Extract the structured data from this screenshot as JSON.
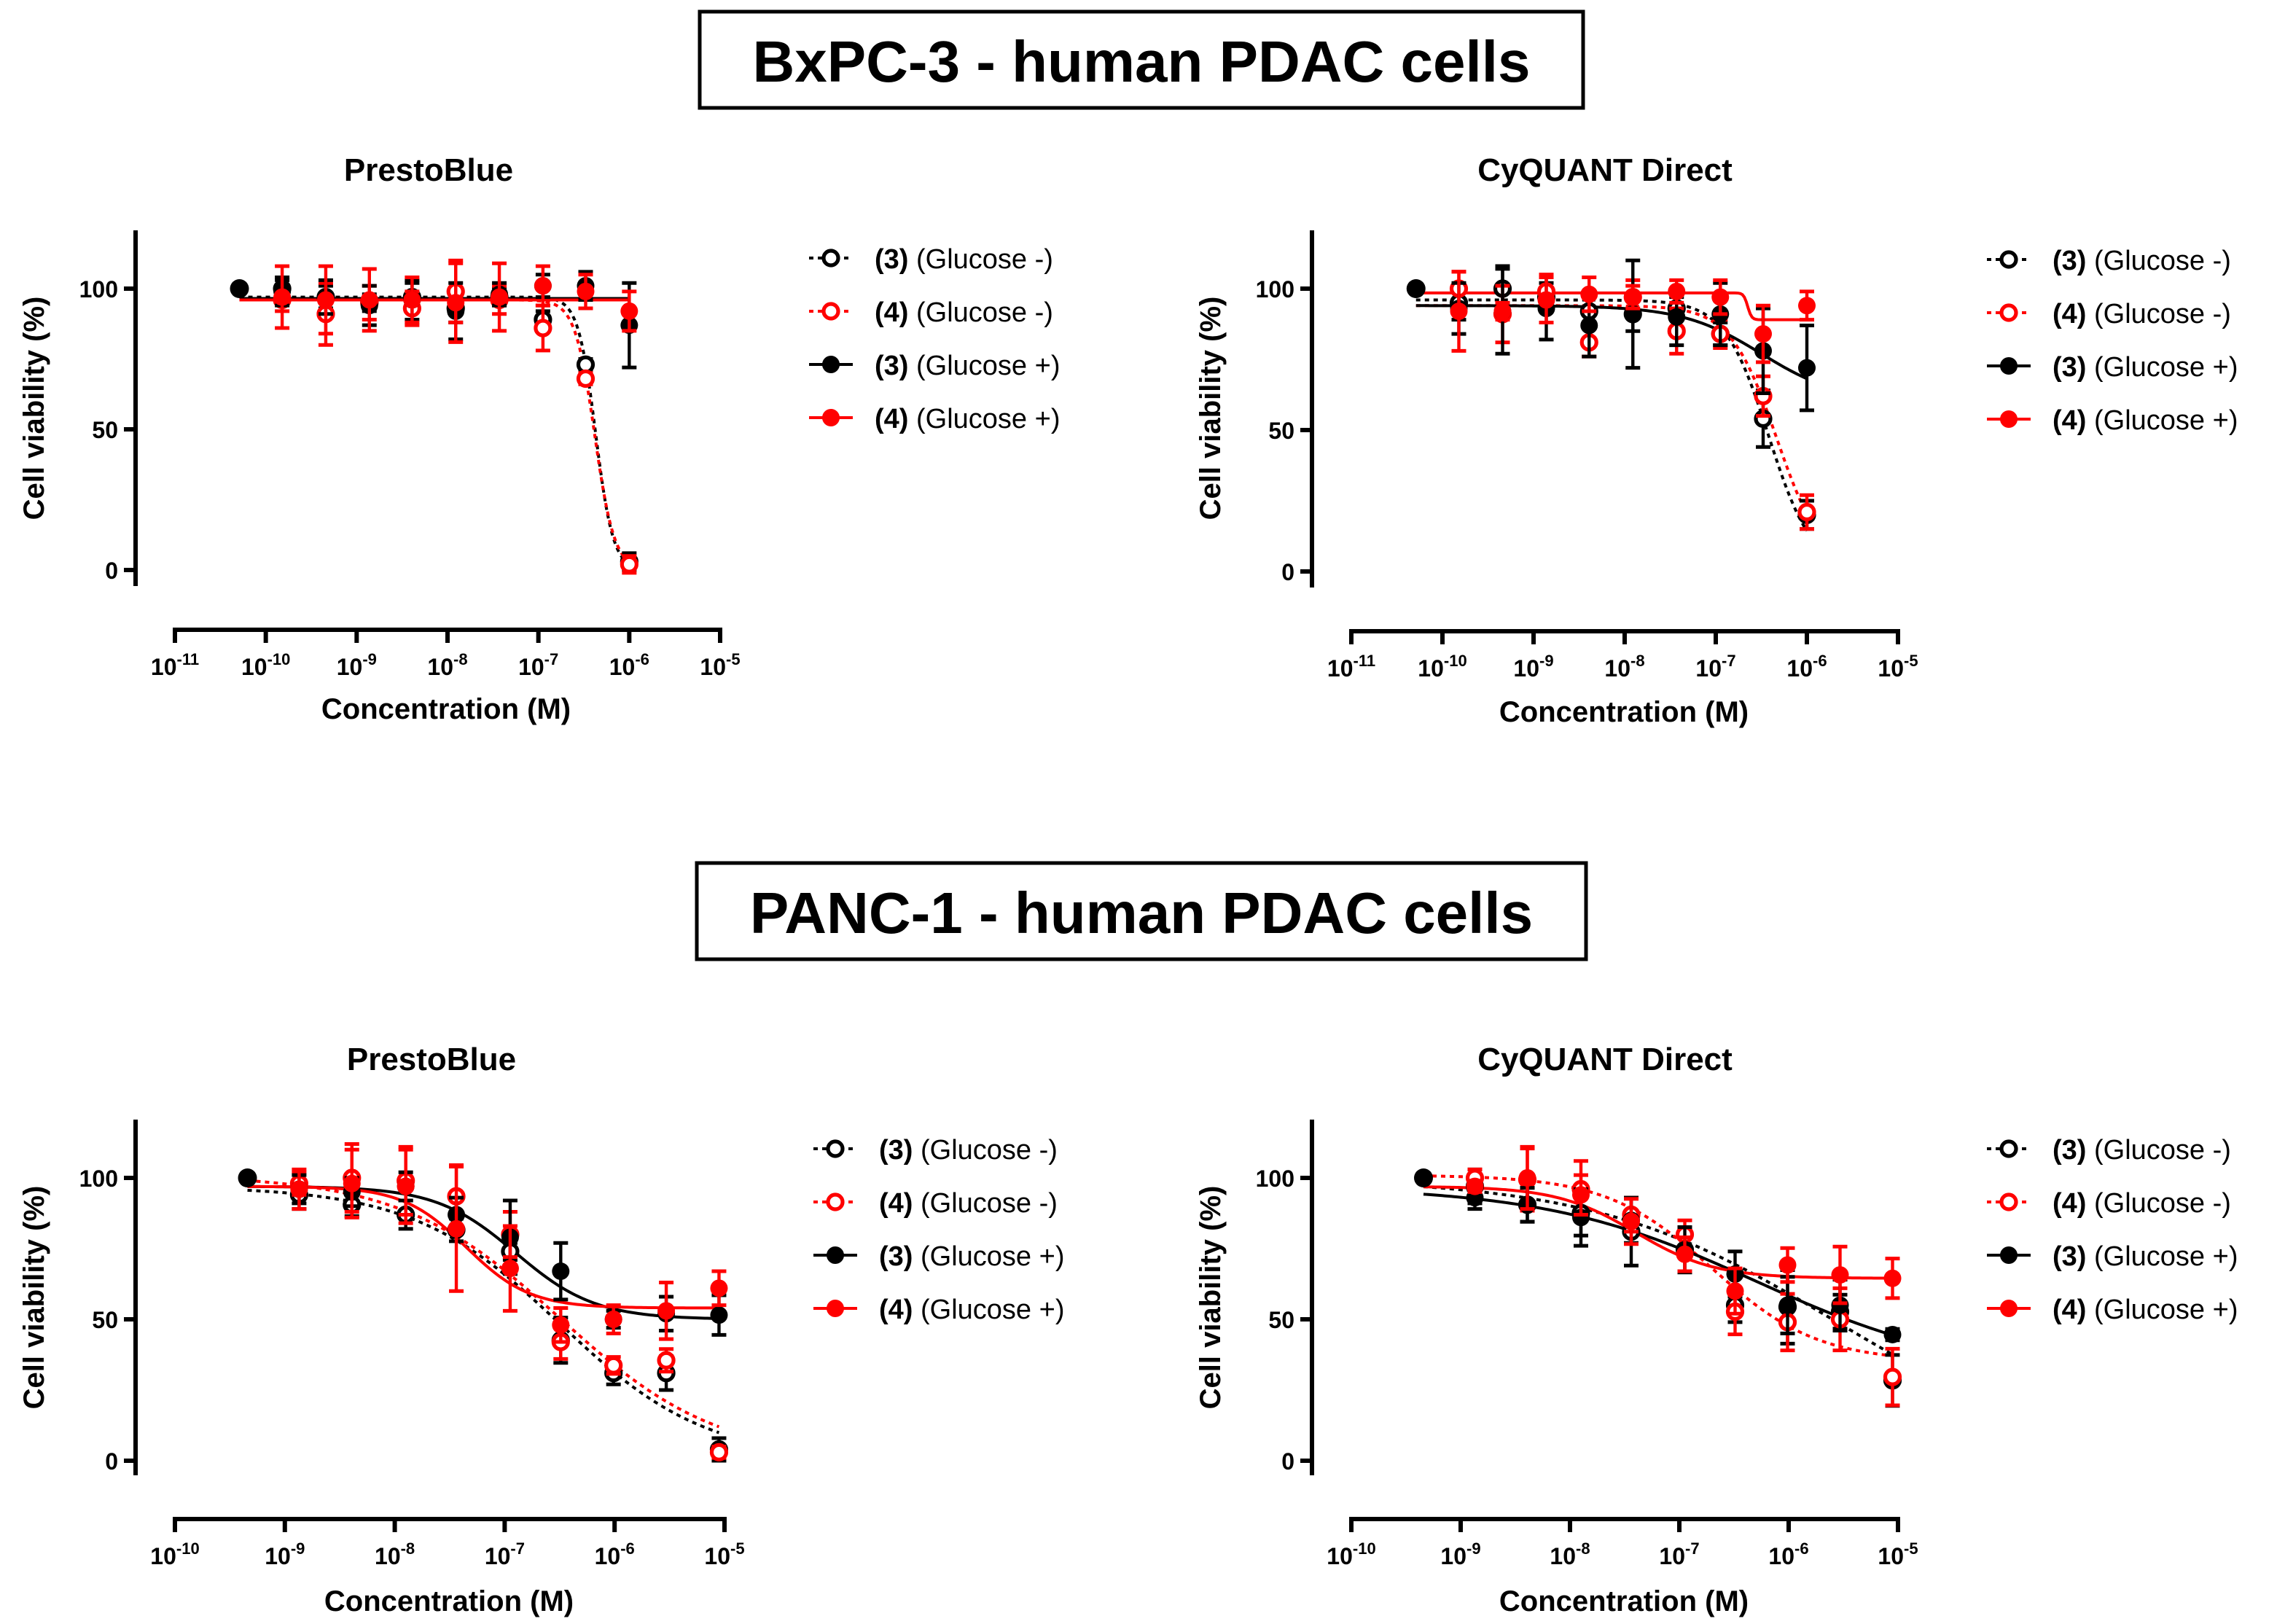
{
  "sections": [
    {
      "title": "BxPC-3 - human PDAC cells"
    },
    {
      "title": "PANC-1 - human PDAC cells"
    }
  ],
  "colors": {
    "black": "#000000",
    "red": "#ff0000"
  },
  "series_styles": [
    {
      "color": "#000000",
      "filled": false,
      "dashed": true
    },
    {
      "color": "#ff0000",
      "filled": false,
      "dashed": true
    },
    {
      "color": "#000000",
      "filled": true,
      "dashed": false
    },
    {
      "color": "#ff0000",
      "filled": true,
      "dashed": false
    }
  ],
  "chart_data": [
    {
      "type": "scatter",
      "title": "PrestoBlue",
      "xlabel": "Concentration (M)",
      "ylabel": "Cell viability (%)",
      "xscale": "log10",
      "xlim_log10": [
        -11,
        -5
      ],
      "x_ticks": [
        {
          "base": "10",
          "exp": "-11"
        },
        {
          "base": "10",
          "exp": "-10"
        },
        {
          "base": "10",
          "exp": "-9"
        },
        {
          "base": "10",
          "exp": "-8"
        },
        {
          "base": "10",
          "exp": "-7"
        },
        {
          "base": "10",
          "exp": "-6"
        },
        {
          "base": "10",
          "exp": "-5"
        }
      ],
      "y_ticks": [
        "100",
        "50",
        "0"
      ],
      "y_tick_values": [
        100,
        50,
        0
      ],
      "ylim": [
        -6,
        120
      ],
      "control": {
        "log10_x": -10.29,
        "y": 100
      },
      "log10_x": [
        -9.82,
        -9.34,
        -8.86,
        -8.39,
        -7.91,
        -7.43,
        -6.95,
        -6.48,
        -6.0
      ],
      "legend_position": "right",
      "series": [
        {
          "id": "(3)",
          "cond": "(Glucose -)",
          "values": [
            100,
            97,
            95,
            97,
            93,
            97,
            89,
            73,
            3
          ],
          "errors": [
            3,
            4,
            3,
            5,
            5,
            3,
            3,
            2,
            3
          ],
          "fit": {
            "top": 97,
            "bottom": 0,
            "log_ic50": -6.37,
            "hill": 4.5
          }
        },
        {
          "id": "(4)",
          "cond": "(Glucose -)",
          "values": [
            96,
            91,
            95,
            93,
            99,
            96,
            86,
            68,
            2
          ],
          "errors": [
            4,
            11,
            6,
            6,
            11,
            5,
            8,
            2,
            3
          ],
          "fit": {
            "top": 96,
            "bottom": 0,
            "log_ic50": -6.38,
            "hill": 4
          }
        },
        {
          "id": "(3)",
          "cond": "(Glucose +)",
          "values": [
            99,
            97,
            94,
            96,
            92,
            98,
            101,
            101,
            87
          ],
          "errors": [
            5,
            6,
            7,
            7,
            10,
            4,
            4,
            5,
            15
          ],
          "fit": {
            "top": 96.5,
            "bottom": 96.5,
            "log_ic50": -7,
            "hill": 1
          }
        },
        {
          "id": "(4)",
          "cond": "(Glucose +)",
          "values": [
            97,
            96,
            96,
            96,
            95,
            97,
            101,
            99,
            92
          ],
          "errors": [
            11,
            12,
            11,
            8,
            14,
            12,
            7,
            6,
            7
          ],
          "fit": {
            "top": 96,
            "bottom": 96,
            "log_ic50": -7,
            "hill": 1
          }
        }
      ]
    },
    {
      "type": "scatter",
      "title": "CyQUANT Direct",
      "xlabel": "Concentration (M)",
      "ylabel": "Cell viability (%)",
      "xscale": "log10",
      "xlim_log10": [
        -11,
        -5
      ],
      "x_ticks": [
        {
          "base": "10",
          "exp": "-11"
        },
        {
          "base": "10",
          "exp": "-10"
        },
        {
          "base": "10",
          "exp": "-9"
        },
        {
          "base": "10",
          "exp": "-8"
        },
        {
          "base": "10",
          "exp": "-7"
        },
        {
          "base": "10",
          "exp": "-6"
        },
        {
          "base": "10",
          "exp": "-5"
        }
      ],
      "y_ticks": [
        "100",
        "50",
        "0"
      ],
      "y_tick_values": [
        100,
        50,
        0
      ],
      "ylim": [
        -6,
        120
      ],
      "control": {
        "log10_x": -10.29,
        "y": 100
      },
      "log10_x": [
        -9.82,
        -9.34,
        -8.86,
        -8.39,
        -7.91,
        -7.43,
        -6.95,
        -6.48,
        -6.0
      ],
      "legend_position": "right",
      "series": [
        {
          "id": "(3)",
          "cond": "(Glucose -)",
          "values": [
            95,
            100,
            97,
            92,
            91,
            93,
            84,
            54,
            20
          ],
          "errors": [
            6,
            8,
            5,
            5,
            6,
            4,
            4,
            10,
            5
          ],
          "fit": {
            "top": 96,
            "bottom": 0,
            "log_ic50": -6.42,
            "hill": 1.8
          }
        },
        {
          "id": "(4)",
          "cond": "(Glucose -)",
          "values": [
            100,
            91,
            99,
            81,
            97,
            85,
            84,
            62,
            21
          ],
          "errors": [
            6,
            10,
            6,
            5,
            6,
            8,
            5,
            7,
            6
          ],
          "fit": {
            "top": 94,
            "bottom": 0,
            "log_ic50": -6.33,
            "hill": 1.7
          }
        },
        {
          "id": "(3)",
          "cond": "(Glucose +)",
          "values": [
            93,
            92,
            93,
            87,
            91,
            90,
            91,
            78,
            72
          ],
          "errors": [
            9,
            15,
            11,
            11,
            19,
            10,
            11,
            15,
            15
          ],
          "fit": {
            "top": 94,
            "bottom": 60,
            "log_ic50": -6.5,
            "hill": 1
          }
        },
        {
          "id": "(4)",
          "cond": "(Glucose +)",
          "values": [
            92,
            92,
            96,
            98,
            97,
            99,
            97,
            84,
            94
          ],
          "errors": [
            14,
            3,
            8,
            6,
            4,
            4,
            6,
            10,
            5
          ],
          "fit": {
            "top": 98.5,
            "bottom": 89,
            "log_ic50": -6.65,
            "hill": 20
          }
        }
      ]
    },
    {
      "type": "scatter",
      "title": "PrestoBlue",
      "xlabel": "Concentration (M)",
      "ylabel": "Cell viability (%)",
      "xscale": "log10",
      "xlim_log10": [
        -10,
        -5
      ],
      "x_ticks": [
        {
          "base": "10",
          "exp": "-10"
        },
        {
          "base": "10",
          "exp": "-9"
        },
        {
          "base": "10",
          "exp": "-8"
        },
        {
          "base": "10",
          "exp": "-7"
        },
        {
          "base": "10",
          "exp": "-6"
        },
        {
          "base": "10",
          "exp": "-5"
        }
      ],
      "y_ticks": [
        "100",
        "50",
        "0"
      ],
      "y_tick_values": [
        100,
        50,
        0
      ],
      "ylim": [
        -6,
        120
      ],
      "control": {
        "log10_x": -9.34,
        "y": 100
      },
      "log10_x": [
        -8.87,
        -8.39,
        -7.9,
        -7.44,
        -6.95,
        -6.49,
        -6.01,
        -5.53,
        -5.05
      ],
      "legend_position": "right",
      "series": [
        {
          "id": "(3)",
          "cond": "(Glucose -)",
          "values": [
            94,
            90.5,
            87,
            81.6,
            74,
            42.6,
            31,
            31,
            4
          ],
          "errors": [
            5,
            4,
            5,
            4,
            3,
            8,
            4,
            6,
            4
          ],
          "fit": {
            "top": 97,
            "bottom": 0,
            "log_ic50": -6.5,
            "hill": 0.65
          }
        },
        {
          "id": "(4)",
          "cond": "(Glucose -)",
          "values": [
            98,
            100,
            99,
            93.5,
            80,
            42,
            33.7,
            35.5,
            3
          ],
          "errors": [
            4,
            12,
            12,
            11,
            8,
            6,
            3,
            4,
            2
          ],
          "fit": {
            "top": 101,
            "bottom": 0,
            "log_ic50": -6.5,
            "hill": 0.6
          }
        },
        {
          "id": "(3)",
          "cond": "(Glucose +)",
          "values": [
            96,
            95,
            97,
            87,
            79,
            67,
            50,
            52,
            51.5
          ],
          "errors": [
            5,
            5,
            5,
            6,
            13,
            10,
            3,
            6,
            7
          ],
          "fit": {
            "top": 97,
            "bottom": 50,
            "log_ic50": -6.9,
            "hill": 1.2
          }
        },
        {
          "id": "(4)",
          "cond": "(Glucose +)",
          "values": [
            96,
            98,
            97,
            82,
            68,
            48,
            50,
            53,
            61
          ],
          "errors": [
            7,
            12,
            13,
            22,
            15,
            6,
            5,
            10,
            6
          ],
          "fit": {
            "top": 97,
            "bottom": 54,
            "log_ic50": -7.35,
            "hill": 1.5
          }
        }
      ]
    },
    {
      "type": "scatter",
      "title": "CyQUANT Direct",
      "xlabel": "Concentration (M)",
      "ylabel": "Cell viability (%)",
      "xscale": "log10",
      "xlim_log10": [
        -10,
        -5
      ],
      "x_ticks": [
        {
          "base": "10",
          "exp": "-10"
        },
        {
          "base": "10",
          "exp": "-9"
        },
        {
          "base": "10",
          "exp": "-8"
        },
        {
          "base": "10",
          "exp": "-7"
        },
        {
          "base": "10",
          "exp": "-6"
        },
        {
          "base": "10",
          "exp": "-5"
        }
      ],
      "y_ticks": [
        "100",
        "50",
        "0"
      ],
      "y_tick_values": [
        100,
        50,
        0
      ],
      "ylim": [
        -6,
        120
      ],
      "control": {
        "log10_x": -9.34,
        "y": 100
      },
      "log10_x": [
        -8.87,
        -8.39,
        -7.9,
        -7.44,
        -6.95,
        -6.49,
        -6.01,
        -5.53,
        -5.05
      ],
      "legend_position": "right",
      "series": [
        {
          "id": "(3)",
          "cond": "(Glucose -)",
          "values": [
            97,
            90.5,
            87.6,
            81,
            74.6,
            55,
            54.4,
            52.7,
            28.4
          ],
          "errors": [
            6,
            6,
            8,
            12,
            8,
            6,
            13,
            6,
            9
          ],
          "fit": {
            "top": 100,
            "bottom": 0,
            "log_ic50": -5.6,
            "hill": 0.4
          }
        },
        {
          "id": "(4)",
          "cond": "(Glucose -)",
          "values": [
            100,
            99.4,
            96,
            87,
            80,
            52.7,
            49,
            50,
            29.6
          ],
          "errors": [
            3,
            11,
            10,
            6,
            5,
            8,
            10,
            11,
            10
          ],
          "fit": {
            "top": 101,
            "bottom": 35,
            "log_ic50": -6.7,
            "hill": 0.9
          }
        },
        {
          "id": "(3)",
          "cond": "(Glucose +)",
          "values": [
            93,
            90.5,
            86,
            85,
            74.6,
            66,
            55,
            55,
            44.6
          ],
          "errors": [
            4,
            6,
            10,
            8,
            8,
            8,
            10,
            9,
            2
          ],
          "fit": {
            "top": 97,
            "bottom": 30,
            "log_ic50": -6.3,
            "hill": 0.45
          }
        },
        {
          "id": "(4)",
          "cond": "(Glucose +)",
          "values": [
            97,
            100,
            94,
            84.6,
            73,
            60,
            69.2,
            65.7,
            64.5
          ],
          "errors": [
            2,
            11,
            7,
            8,
            6,
            8,
            6,
            10,
            7
          ],
          "fit": {
            "top": 97,
            "bottom": 64.5,
            "log_ic50": -7.4,
            "hill": 1.2
          }
        }
      ]
    }
  ]
}
